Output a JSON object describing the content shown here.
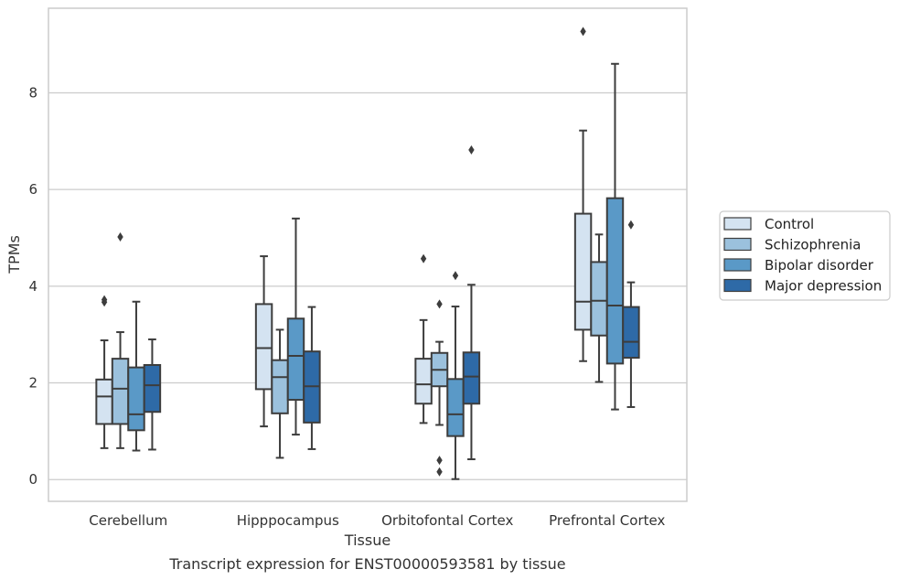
{
  "chart_data": {
    "type": "box",
    "xlabel": "Tissue",
    "ylabel": "TPMs",
    "caption": "Transcript expression for ENST00000593581 by tissue",
    "ylim": [
      -0.45,
      9.75
    ],
    "yticks": [
      0,
      2,
      4,
      6,
      8
    ],
    "grid": "horizontal",
    "legend_position": "right",
    "categories": [
      "Cerebellum",
      "Hipppocampus",
      "Orbitofontal Cortex",
      "Prefrontal Cortex"
    ],
    "series": [
      {
        "name": "Control",
        "color": "#d4e3f1",
        "boxes": [
          {
            "min": 0.65,
            "q1": 1.15,
            "median": 1.72,
            "q3": 2.07,
            "max": 2.88,
            "outliers": [
              3.67,
              3.72
            ]
          },
          {
            "min": 1.1,
            "q1": 1.87,
            "median": 2.72,
            "q3": 3.63,
            "max": 4.62,
            "outliers": []
          },
          {
            "min": 1.17,
            "q1": 1.57,
            "median": 1.97,
            "q3": 2.5,
            "max": 3.3,
            "outliers": [
              4.57
            ]
          },
          {
            "min": 2.45,
            "q1": 3.1,
            "median": 3.68,
            "q3": 5.5,
            "max": 7.22,
            "outliers": [
              9.27
            ]
          }
        ]
      },
      {
        "name": "Schizophrenia",
        "color": "#9bc1dd",
        "boxes": [
          {
            "min": 0.65,
            "q1": 1.15,
            "median": 1.88,
            "q3": 2.5,
            "max": 3.05,
            "outliers": [
              5.02
            ]
          },
          {
            "min": 0.45,
            "q1": 1.37,
            "median": 2.12,
            "q3": 2.47,
            "max": 3.1,
            "outliers": []
          },
          {
            "min": 1.13,
            "q1": 1.93,
            "median": 2.27,
            "q3": 2.62,
            "max": 2.85,
            "outliers": [
              3.63,
              0.4,
              0.16
            ]
          },
          {
            "min": 2.02,
            "q1": 2.98,
            "median": 3.7,
            "q3": 4.5,
            "max": 5.07,
            "outliers": []
          }
        ]
      },
      {
        "name": "Bipolar disorder",
        "color": "#5a99c7",
        "boxes": [
          {
            "min": 0.6,
            "q1": 1.02,
            "median": 1.35,
            "q3": 2.32,
            "max": 3.68,
            "outliers": []
          },
          {
            "min": 0.93,
            "q1": 1.65,
            "median": 2.56,
            "q3": 3.33,
            "max": 5.4,
            "outliers": []
          },
          {
            "min": 0.01,
            "q1": 0.9,
            "median": 1.35,
            "q3": 2.08,
            "max": 3.58,
            "outliers": [
              4.22
            ]
          },
          {
            "min": 1.45,
            "q1": 2.4,
            "median": 3.6,
            "q3": 5.82,
            "max": 8.6,
            "outliers": []
          }
        ]
      },
      {
        "name": "Major depression",
        "color": "#2e6aa7",
        "boxes": [
          {
            "min": 0.62,
            "q1": 1.4,
            "median": 1.95,
            "q3": 2.37,
            "max": 2.9,
            "outliers": []
          },
          {
            "min": 0.63,
            "q1": 1.18,
            "median": 1.93,
            "q3": 2.65,
            "max": 3.57,
            "outliers": []
          },
          {
            "min": 0.42,
            "q1": 1.57,
            "median": 2.13,
            "q3": 2.63,
            "max": 4.03,
            "outliers": [
              6.82
            ]
          },
          {
            "min": 1.5,
            "q1": 2.52,
            "median": 2.85,
            "q3": 3.57,
            "max": 4.08,
            "outliers": [
              5.27
            ]
          }
        ]
      }
    ]
  }
}
